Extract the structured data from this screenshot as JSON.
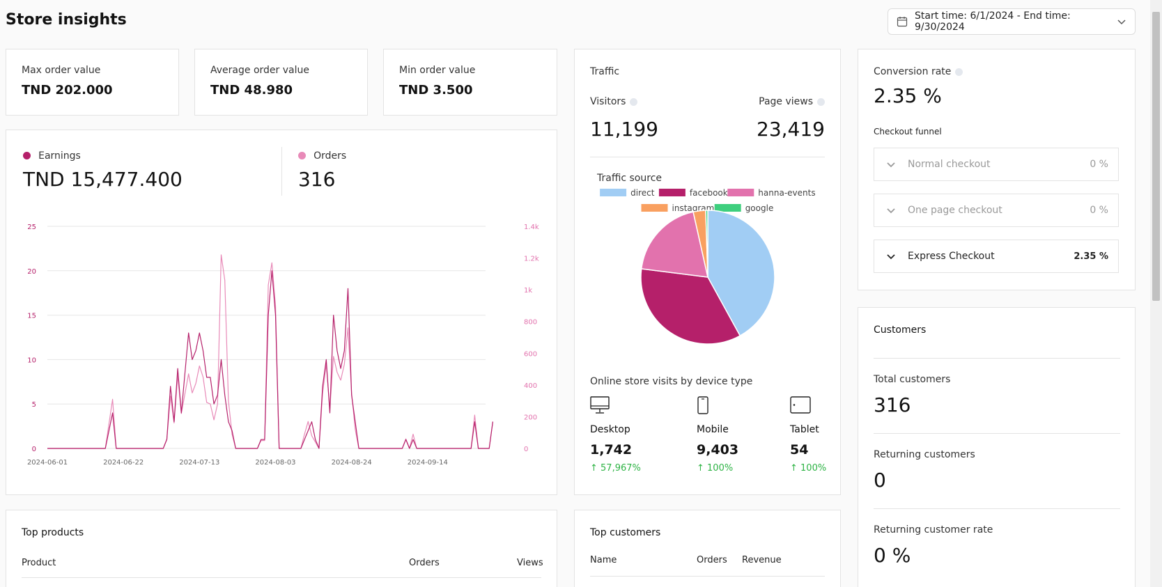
{
  "header": {
    "title": "Store insights",
    "date_range": "Start time: 6/1/2024 - End time: 9/30/2024",
    "icons": {
      "calendar": "calendar-icon",
      "chevron": "chevron-down-icon"
    }
  },
  "kpis": [
    {
      "label": "Max order value",
      "value": "TND 202.000"
    },
    {
      "label": "Average order value",
      "value": "TND 48.980"
    },
    {
      "label": "Min order value",
      "value": "TND 3.500"
    }
  ],
  "earnings": {
    "earnings_label": "Earnings",
    "earnings_value": "TND 15,477.400",
    "orders_label": "Orders",
    "orders_value": "316",
    "colors": {
      "earnings": "#b5206a",
      "orders": "#e88ab8"
    }
  },
  "chart_data": {
    "type": "line",
    "x_tick_labels": [
      "2024-06-01",
      "2024-06-22",
      "2024-07-13",
      "2024-08-03",
      "2024-08-24",
      "2024-09-14"
    ],
    "y_left_ticks": [
      "0",
      "5",
      "10",
      "15",
      "20",
      "25"
    ],
    "y_right_ticks": [
      "0",
      "200",
      "400",
      "600",
      "800",
      "1k",
      "1.2k",
      "1.4k"
    ],
    "ylim_left": [
      0,
      25
    ],
    "ylim_right": [
      0,
      1400
    ],
    "x_range_days": [
      0,
      121
    ],
    "series": [
      {
        "name": "Earnings",
        "color": "#b5206a",
        "axis": "left",
        "points": [
          [
            0,
            0
          ],
          [
            16,
            0
          ],
          [
            18,
            4
          ],
          [
            19,
            0
          ],
          [
            32,
            0
          ],
          [
            33,
            1
          ],
          [
            34,
            7
          ],
          [
            35,
            3
          ],
          [
            36,
            9
          ],
          [
            37,
            4
          ],
          [
            39,
            13
          ],
          [
            40,
            10
          ],
          [
            41,
            11
          ],
          [
            42,
            13
          ],
          [
            43,
            11
          ],
          [
            44,
            8
          ],
          [
            45,
            8
          ],
          [
            46,
            5
          ],
          [
            47,
            6
          ],
          [
            48,
            10
          ],
          [
            49,
            6
          ],
          [
            50,
            3
          ],
          [
            51,
            2
          ],
          [
            52,
            0
          ],
          [
            58,
            0
          ],
          [
            59,
            1
          ],
          [
            60,
            1
          ],
          [
            61,
            15
          ],
          [
            62,
            20
          ],
          [
            63,
            15
          ],
          [
            64,
            0
          ],
          [
            70,
            0
          ],
          [
            71,
            1
          ],
          [
            72,
            2
          ],
          [
            73,
            3
          ],
          [
            74,
            1
          ],
          [
            75,
            0
          ],
          [
            76,
            7
          ],
          [
            77,
            10
          ],
          [
            78,
            4
          ],
          [
            79,
            15
          ],
          [
            80,
            11
          ],
          [
            81,
            9
          ],
          [
            82,
            11
          ],
          [
            83,
            18
          ],
          [
            84,
            6
          ],
          [
            85,
            3
          ],
          [
            86,
            0
          ],
          [
            98,
            0
          ],
          [
            99,
            1
          ],
          [
            100,
            0
          ],
          [
            101,
            1
          ],
          [
            102,
            0
          ],
          [
            117,
            0
          ],
          [
            118,
            3
          ],
          [
            119,
            0
          ],
          [
            122,
            0
          ],
          [
            123,
            3
          ]
        ]
      },
      {
        "name": "Orders",
        "color": "#e88ab8",
        "axis": "right",
        "points": [
          [
            0,
            0
          ],
          [
            16,
            0
          ],
          [
            18,
            310
          ],
          [
            19,
            0
          ],
          [
            32,
            0
          ],
          [
            33,
            60
          ],
          [
            34,
            330
          ],
          [
            35,
            160
          ],
          [
            36,
            460
          ],
          [
            37,
            220
          ],
          [
            39,
            470
          ],
          [
            40,
            350
          ],
          [
            41,
            410
          ],
          [
            42,
            520
          ],
          [
            43,
            450
          ],
          [
            44,
            290
          ],
          [
            45,
            280
          ],
          [
            46,
            180
          ],
          [
            47,
            280
          ],
          [
            48,
            1220
          ],
          [
            49,
            1060
          ],
          [
            50,
            300
          ],
          [
            51,
            90
          ],
          [
            52,
            0
          ],
          [
            58,
            0
          ],
          [
            59,
            50
          ],
          [
            60,
            50
          ],
          [
            61,
            1030
          ],
          [
            62,
            1170
          ],
          [
            63,
            900
          ],
          [
            64,
            0
          ],
          [
            70,
            0
          ],
          [
            71,
            90
          ],
          [
            72,
            170
          ],
          [
            73,
            80
          ],
          [
            74,
            40
          ],
          [
            75,
            0
          ],
          [
            76,
            350
          ],
          [
            77,
            530
          ],
          [
            78,
            250
          ],
          [
            79,
            580
          ],
          [
            80,
            480
          ],
          [
            81,
            430
          ],
          [
            82,
            530
          ],
          [
            83,
            760
          ],
          [
            84,
            350
          ],
          [
            85,
            120
          ],
          [
            86,
            0
          ],
          [
            98,
            0
          ],
          [
            99,
            60
          ],
          [
            100,
            0
          ],
          [
            101,
            90
          ],
          [
            102,
            0
          ],
          [
            117,
            0
          ],
          [
            118,
            210
          ],
          [
            119,
            0
          ],
          [
            122,
            0
          ],
          [
            123,
            170
          ]
        ]
      }
    ]
  },
  "traffic": {
    "title": "Traffic",
    "visitors_label": "Visitors",
    "visitors_value": "11,199",
    "page_views_label": "Page views",
    "page_views_value": "23,419",
    "source_title": "Traffic source",
    "sources": [
      {
        "name": "direct",
        "color": "#a1cdf4",
        "share": 42
      },
      {
        "name": "facebook",
        "color": "#b5206a",
        "share": 35
      },
      {
        "name": "hanna-events",
        "color": "#e272ad",
        "share": 19.5
      },
      {
        "name": "instagram",
        "color": "#f9a060",
        "share": 3
      },
      {
        "name": "google",
        "color": "#3ecf7e",
        "share": 0.5
      }
    ],
    "device_title": "Online store visits by device type",
    "devices": [
      {
        "name": "Desktop",
        "icon": "desktop-icon",
        "value": "1,742",
        "change": "57,967%"
      },
      {
        "name": "Mobile",
        "icon": "mobile-icon",
        "value": "9,403",
        "change": "100%"
      },
      {
        "name": "Tablet",
        "icon": "tablet-icon",
        "value": "54",
        "change": "100%"
      }
    ]
  },
  "conversion": {
    "title": "Conversion rate",
    "value": "2.35 %",
    "funnel_title": "Checkout funnel",
    "funnel": [
      {
        "name": "Normal checkout",
        "value": "0 %"
      },
      {
        "name": "One page checkout",
        "value": "0 %"
      },
      {
        "name": "Express Checkout",
        "value": "2.35 %"
      }
    ]
  },
  "customers": {
    "title": "Customers",
    "total_label": "Total customers",
    "total_value": "316",
    "returning_label": "Returning customers",
    "returning_value": "0",
    "rate_label": "Returning customer rate",
    "rate_value": "0 %"
  },
  "top_products": {
    "title": "Top products",
    "columns": [
      "Product",
      "Orders",
      "Views"
    ]
  },
  "top_customers": {
    "title": "Top customers",
    "columns": [
      "Name",
      "Orders",
      "Revenue"
    ]
  }
}
